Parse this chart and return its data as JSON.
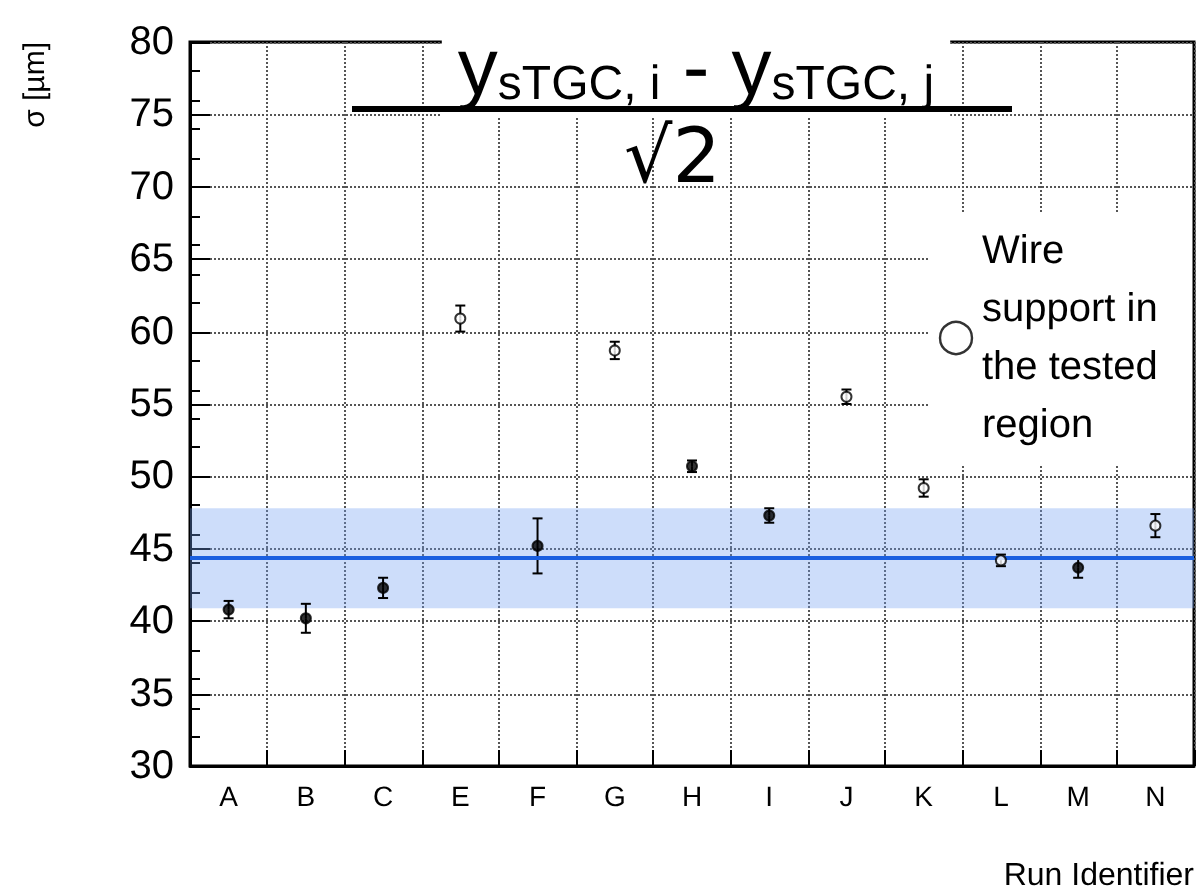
{
  "chart_data": {
    "type": "scatter",
    "title": "y$_{sTGC, i}$ - y$_{sTGC, j}$",
    "subtitle": "√2",
    "xlabel": "Run Identifier",
    "ylabel": "σ [µm]",
    "categories": [
      "A",
      "B",
      "C",
      "E",
      "F",
      "G",
      "H",
      "I",
      "J",
      "K",
      "L",
      "M",
      "N"
    ],
    "series": [
      {
        "color": "#000000",
        "marker": "circle",
        "values": [
          40.8,
          40.2,
          42.3,
          null,
          45.2,
          null,
          50.7,
          47.3,
          null,
          null,
          null,
          43.7,
          null
        ],
        "errors": [
          0.6,
          1.0,
          0.7,
          null,
          1.9,
          null,
          0.4,
          0.5,
          null,
          null,
          null,
          0.7,
          null
        ]
      },
      {
        "name": "Wire support in the tested region",
        "color": "#ffffff",
        "marker": "circle",
        "values": [
          null,
          null,
          null,
          60.9,
          null,
          58.7,
          null,
          null,
          55.5,
          49.2,
          44.2,
          null,
          46.6
        ],
        "errors": [
          null,
          null,
          null,
          0.9,
          null,
          0.6,
          null,
          null,
          0.5,
          0.6,
          0.4,
          null,
          0.8
        ]
      }
    ],
    "ylim": [
      30,
      80
    ],
    "yticks": [
      30,
      35,
      40,
      45,
      50,
      55,
      60,
      65,
      70,
      75,
      80
    ],
    "ref_lines": [
      {
        "axis": "y",
        "value": 44.4,
        "color": "#1a5fe0"
      }
    ],
    "bands": [
      {
        "axis": "y",
        "from": 40.9,
        "to": 47.8,
        "color": "#6f9ef2"
      }
    ],
    "grid": true,
    "legend": "top right"
  }
}
